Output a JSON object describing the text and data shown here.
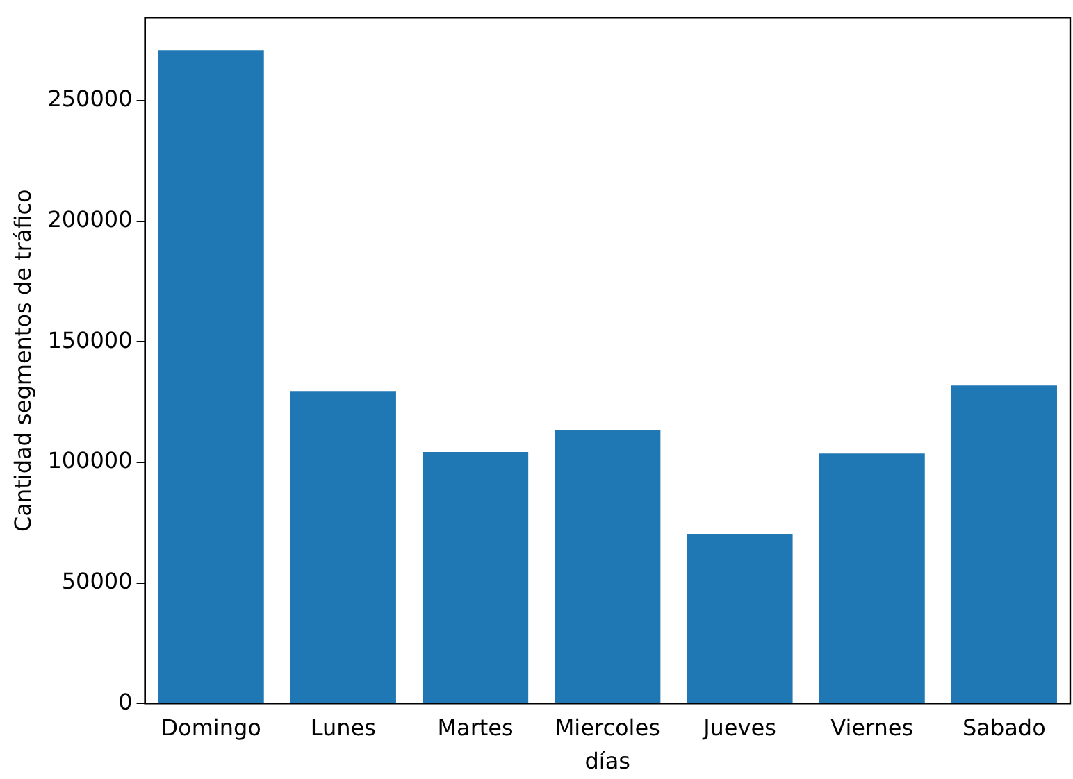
{
  "chart_data": {
    "type": "bar",
    "xlabel": "días",
    "ylabel": "Cantidad segmentos de tráfico",
    "categories": [
      "Domingo",
      "Lunes",
      "Martes",
      "Miercoles",
      "Jueves",
      "Viernes",
      "Sabado"
    ],
    "values": [
      271000,
      129600,
      104300,
      113500,
      70300,
      103700,
      131900
    ],
    "color": "#1f77b4",
    "ylim": [
      0,
      284550
    ],
    "yticks": [
      0,
      50000,
      100000,
      150000,
      200000,
      250000
    ],
    "grid": false,
    "legend": false
  }
}
